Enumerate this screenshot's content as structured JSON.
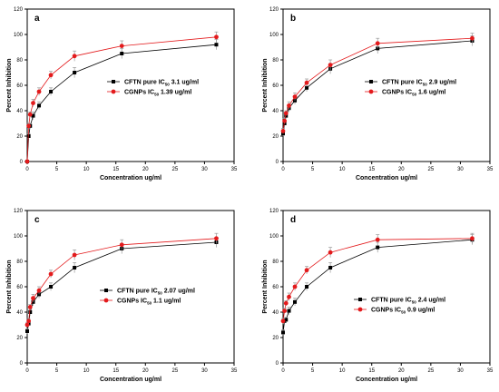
{
  "colors": {
    "series0": "#000000",
    "series1": "#e31a1c",
    "errorbar": "#999999"
  },
  "chart_data": [
    {
      "type": "line",
      "panel_label": "a",
      "xlabel": "Concentration ug/ml",
      "ylabel": "Percent Inhibition",
      "xlim": [
        0,
        35
      ],
      "ylim": [
        0,
        120
      ],
      "xticks": [
        0,
        5,
        10,
        15,
        20,
        25,
        30,
        35
      ],
      "yticks": [
        0,
        20,
        40,
        60,
        80,
        100,
        120
      ],
      "grid": false,
      "legend_position": "center-right",
      "series": [
        {
          "name_main": "CFTN pure IC",
          "name_sub": "50",
          "name_rest": " 3.1 ug/ml",
          "marker": "square",
          "x": [
            0,
            0.25,
            0.5,
            1,
            2,
            4,
            8,
            16,
            32
          ],
          "y": [
            0,
            20,
            28,
            36,
            44,
            55,
            70,
            85,
            92
          ],
          "err": [
            0,
            2,
            2,
            3,
            3,
            3,
            4,
            4,
            4
          ]
        },
        {
          "name_main": "CGNPs IC",
          "name_sub": "50",
          "name_rest": " 1.39 ug/ml",
          "marker": "circle",
          "x": [
            0,
            0.25,
            0.5,
            1,
            2,
            4,
            8,
            16,
            32
          ],
          "y": [
            0,
            28,
            37,
            46,
            55,
            68,
            83,
            91,
            98
          ],
          "err": [
            0,
            2,
            2,
            3,
            3,
            3,
            4,
            4,
            4
          ]
        }
      ]
    },
    {
      "type": "line",
      "panel_label": "b",
      "xlabel": "Concentration ug/ml",
      "ylabel": "Percent Inhibition",
      "xlim": [
        0,
        35
      ],
      "ylim": [
        0,
        120
      ],
      "xticks": [
        0,
        5,
        10,
        15,
        20,
        25,
        30,
        35
      ],
      "yticks": [
        0,
        20,
        40,
        60,
        80,
        100,
        120
      ],
      "grid": false,
      "legend_position": "center-right",
      "series": [
        {
          "name_main": "CFTN pure IC",
          "name_sub": "50",
          "name_rest": " 2.9 ug/ml",
          "marker": "square",
          "x": [
            0,
            0.25,
            0.5,
            1,
            2,
            4,
            8,
            16,
            32
          ],
          "y": [
            22,
            30,
            36,
            42,
            48,
            58,
            73,
            89,
            95
          ],
          "err": [
            2,
            2,
            2,
            3,
            3,
            3,
            4,
            4,
            4
          ]
        },
        {
          "name_main": "CGNPs IC",
          "name_sub": "50",
          "name_rest": " 1.6 ug/ml",
          "marker": "circle",
          "x": [
            0,
            0.25,
            0.5,
            1,
            2,
            4,
            8,
            16,
            32
          ],
          "y": [
            24,
            32,
            38,
            44,
            51,
            62,
            76,
            93,
            97
          ],
          "err": [
            2,
            2,
            2,
            3,
            3,
            3,
            4,
            4,
            4
          ]
        }
      ]
    },
    {
      "type": "line",
      "panel_label": "c",
      "xlabel": "Concentration ug/ml",
      "ylabel": "Percent Inhibition",
      "xlim": [
        0,
        35
      ],
      "ylim": [
        0,
        120
      ],
      "xticks": [
        0,
        5,
        10,
        15,
        20,
        25,
        30,
        35
      ],
      "yticks": [
        0,
        20,
        40,
        60,
        80,
        100,
        120
      ],
      "grid": false,
      "legend_position": "center-right",
      "series": [
        {
          "name_main": "CFTN pure IC",
          "name_sub": "50",
          "name_rest": " 2.07 ug/ml",
          "marker": "square",
          "x": [
            0,
            0.25,
            0.5,
            1,
            2,
            4,
            8,
            16,
            32
          ],
          "y": [
            25,
            31,
            40,
            48,
            54,
            60,
            75,
            90,
            95
          ],
          "err": [
            2,
            2,
            2,
            3,
            3,
            3,
            4,
            4,
            4
          ]
        },
        {
          "name_main": "CGNPs IC",
          "name_sub": "50",
          "name_rest": " 1.1 ug/ml",
          "marker": "circle",
          "x": [
            0,
            0.25,
            0.5,
            1,
            2,
            4,
            8,
            16,
            32
          ],
          "y": [
            30,
            33,
            44,
            51,
            57,
            70,
            85,
            93,
            98
          ],
          "err": [
            2,
            2,
            2,
            3,
            3,
            3,
            4,
            4,
            4
          ]
        }
      ]
    },
    {
      "type": "line",
      "panel_label": "d",
      "xlabel": "Concentration ug/ml",
      "ylabel": "Percent Inhibition",
      "xlim": [
        0,
        35
      ],
      "ylim": [
        0,
        120
      ],
      "xticks": [
        0,
        5,
        10,
        15,
        20,
        25,
        30,
        35
      ],
      "yticks": [
        0,
        20,
        40,
        60,
        80,
        100,
        120
      ],
      "grid": false,
      "legend_position": "center-right",
      "series": [
        {
          "name_main": "CFTN pure IC",
          "name_sub": "50",
          "name_rest": " 2.4 ug/ml",
          "marker": "square",
          "x": [
            0,
            0.25,
            0.5,
            1,
            2,
            4,
            8,
            16,
            32
          ],
          "y": [
            24,
            33,
            34,
            41,
            48,
            60,
            75,
            91,
            97
          ],
          "err": [
            2,
            2,
            2,
            3,
            3,
            3,
            4,
            4,
            4
          ]
        },
        {
          "name_main": "CGNPs IC",
          "name_sub": "50",
          "name_rest": " 0.9 ug/ml",
          "marker": "circle",
          "x": [
            0,
            0.25,
            0.5,
            1,
            2,
            4,
            8,
            16,
            32
          ],
          "y": [
            33,
            41,
            47,
            52,
            60,
            73,
            87,
            97,
            98
          ],
          "err": [
            2,
            2,
            2,
            3,
            3,
            3,
            4,
            4,
            4
          ]
        }
      ]
    }
  ]
}
